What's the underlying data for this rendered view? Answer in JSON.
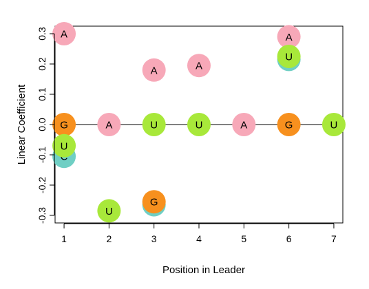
{
  "chart_data": {
    "type": "scatter",
    "title": "",
    "xlabel": "Position in Leader",
    "ylabel": "Linear Coefficient",
    "xlim": [
      0.8,
      7.2
    ],
    "ylim": [
      -0.325,
      0.325
    ],
    "x_ticks": [
      1,
      2,
      3,
      4,
      5,
      6,
      7
    ],
    "x_tick_labels": [
      "1",
      "2",
      "3",
      "4",
      "5",
      "6",
      "7"
    ],
    "y_ticks": [
      -0.3,
      -0.2,
      -0.1,
      0.0,
      0.1,
      0.2,
      0.3
    ],
    "y_tick_labels": [
      "-0.3",
      "-0.2",
      "-0.1",
      "0.0",
      "0.1",
      "0.2",
      "0.3"
    ],
    "reference_line_y": 0,
    "grid": false,
    "legend": "none",
    "colors": {
      "A": "#F7A8B8",
      "C": "#6FCFC4",
      "G": "#F7901E",
      "U": "#A8E83A"
    },
    "points": [
      {
        "x": 1,
        "y": 0.3,
        "label": "A",
        "base": "A"
      },
      {
        "x": 1,
        "y": -0.105,
        "label": "C",
        "base": "C"
      },
      {
        "x": 1,
        "y": 0.0,
        "label": "G",
        "base": "G"
      },
      {
        "x": 1,
        "y": -0.07,
        "label": "U",
        "base": "U"
      },
      {
        "x": 2,
        "y": 0.0,
        "label": "A",
        "base": "A"
      },
      {
        "x": 2,
        "y": -0.285,
        "label": "U",
        "base": "U"
      },
      {
        "x": 3,
        "y": 0.18,
        "label": "A",
        "base": "A"
      },
      {
        "x": 3,
        "y": -0.265,
        "label": "C",
        "base": "C"
      },
      {
        "x": 3,
        "y": -0.255,
        "label": "G",
        "base": "G"
      },
      {
        "x": 3,
        "y": 0.0,
        "label": "U",
        "base": "U"
      },
      {
        "x": 4,
        "y": 0.195,
        "label": "A",
        "base": "A"
      },
      {
        "x": 4,
        "y": 0.0,
        "label": "U",
        "base": "U"
      },
      {
        "x": 5,
        "y": 0.0,
        "label": "A",
        "base": "A"
      },
      {
        "x": 6,
        "y": 0.29,
        "label": "A",
        "base": "A"
      },
      {
        "x": 6,
        "y": 0.215,
        "label": "C",
        "base": "C"
      },
      {
        "x": 6,
        "y": 0.0,
        "label": "G",
        "base": "G"
      },
      {
        "x": 6,
        "y": 0.225,
        "label": "U",
        "base": "U"
      },
      {
        "x": 7,
        "y": 0.0,
        "label": "U",
        "base": "U"
      }
    ]
  }
}
